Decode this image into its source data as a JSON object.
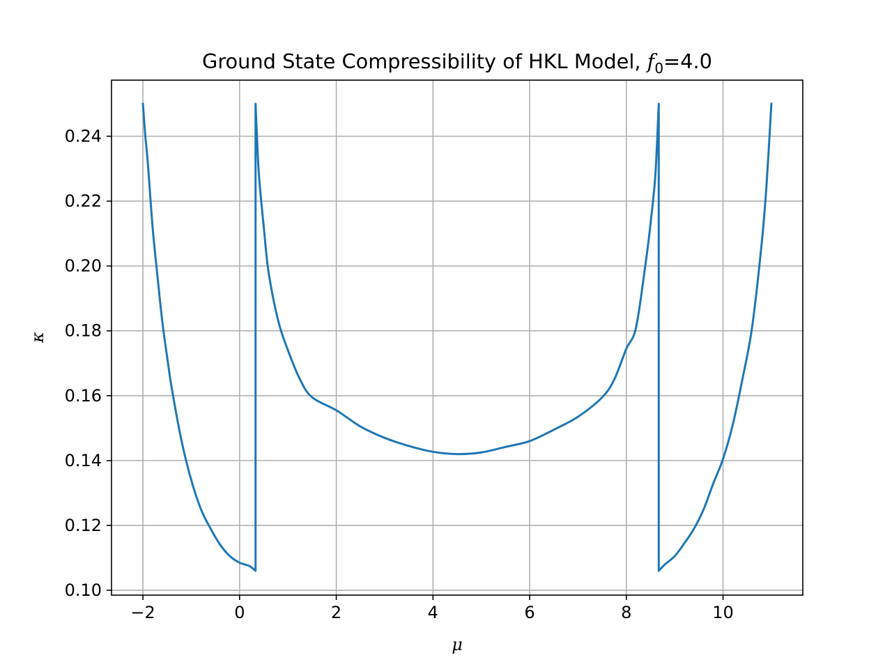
{
  "chart_data": {
    "type": "line",
    "title": {
      "prefix": "Ground State Compressibility of HKL Model, ",
      "symbol": "f",
      "subscript": "0",
      "suffix": "=4.0"
    },
    "xlabel": "μ",
    "ylabel": "κ",
    "xlim": [
      -2.65,
      11.65
    ],
    "ylim": [
      0.0985,
      0.2573
    ],
    "xticks": [
      -2,
      0,
      2,
      4,
      6,
      8,
      10
    ],
    "xtick_labels": [
      "−2",
      "0",
      "2",
      "4",
      "6",
      "8",
      "10"
    ],
    "yticks": [
      0.1,
      0.12,
      0.14,
      0.16,
      0.18,
      0.2,
      0.22,
      0.24
    ],
    "ytick_labels": [
      "0.10",
      "0.12",
      "0.14",
      "0.16",
      "0.18",
      "0.20",
      "0.22",
      "0.24"
    ],
    "grid": true,
    "line_color": "#1f77b4",
    "grid_color": "#b0b0b0",
    "series": [
      {
        "x": [
          -2.0,
          -1.95,
          -1.9,
          -1.8,
          -1.7,
          -1.6,
          -1.5,
          -1.4,
          -1.2,
          -1.0,
          -0.8,
          -0.6,
          -0.4,
          -0.2,
          0.0,
          0.2,
          0.33,
          0.33,
          0.35,
          0.4,
          0.5,
          0.6,
          0.8,
          1.0,
          1.25,
          1.5,
          2.0,
          2.5,
          3.0,
          3.5,
          4.0,
          4.5,
          5.0,
          5.5,
          6.0,
          6.5,
          7.0,
          7.5,
          7.75,
          8.0,
          8.2,
          8.4,
          8.5,
          8.6,
          8.67,
          8.67,
          8.8,
          9.0,
          9.2,
          9.4,
          9.6,
          9.8,
          10.0,
          10.2,
          10.4,
          10.6,
          10.8,
          10.9,
          11.0
        ],
        "y": [
          0.25,
          0.24,
          0.232,
          0.212,
          0.197,
          0.183,
          0.172,
          0.162,
          0.146,
          0.134,
          0.125,
          0.119,
          0.114,
          0.1105,
          0.1085,
          0.1075,
          0.106,
          0.25,
          0.243,
          0.228,
          0.212,
          0.198,
          0.183,
          0.174,
          0.165,
          0.1595,
          0.1555,
          0.1505,
          0.147,
          0.1445,
          0.1427,
          0.142,
          0.1425,
          0.1442,
          0.146,
          0.1495,
          0.1535,
          0.1595,
          0.165,
          0.1745,
          0.181,
          0.201,
          0.213,
          0.228,
          0.25,
          0.106,
          0.108,
          0.1105,
          0.1145,
          0.119,
          0.125,
          0.133,
          0.1405,
          0.151,
          0.165,
          0.181,
          0.207,
          0.225,
          0.25
        ]
      }
    ]
  }
}
